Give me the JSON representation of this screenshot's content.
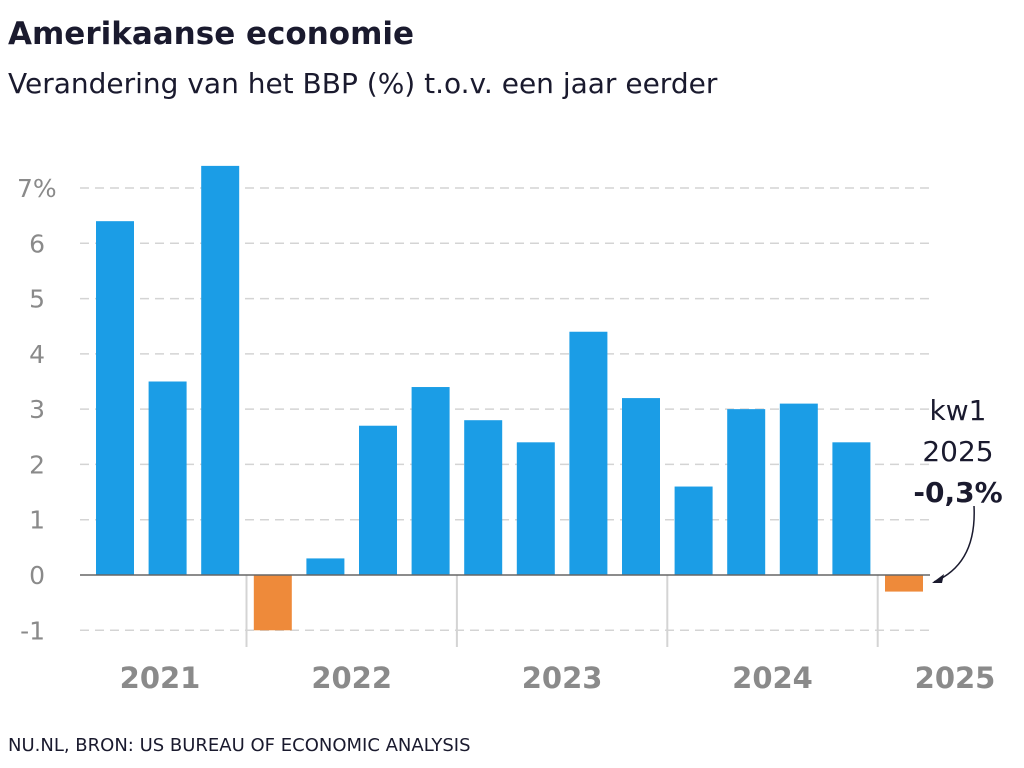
{
  "chart_data": {
    "type": "bar",
    "title": "Amerikaanse economie",
    "subtitle": "Verandering van het BBP (%) t.o.v. een jaar eerder",
    "source": "NU.NL, BRON: US BUREAU OF ECONOMIC ANALYSIS",
    "ylim": [
      -1,
      7
    ],
    "y_ticks": [
      {
        "value": -1,
        "label": "-1"
      },
      {
        "value": 0,
        "label": "0"
      },
      {
        "value": 1,
        "label": "1"
      },
      {
        "value": 2,
        "label": "2"
      },
      {
        "value": 3,
        "label": "3"
      },
      {
        "value": 4,
        "label": "4"
      },
      {
        "value": 5,
        "label": "5"
      },
      {
        "value": 6,
        "label": "6"
      },
      {
        "value": 7,
        "label": "7%"
      }
    ],
    "grid": true,
    "groups": [
      {
        "label": "2021",
        "values": [
          6.4,
          3.5,
          7.4
        ]
      },
      {
        "label": "2022",
        "values": [
          -1.0,
          0.3,
          2.7,
          3.4
        ]
      },
      {
        "label": "2023",
        "values": [
          2.8,
          2.4,
          4.4,
          3.2
        ]
      },
      {
        "label": "2024",
        "values": [
          1.6,
          3.0,
          3.1,
          2.4
        ]
      },
      {
        "label": "2025",
        "values": [
          -0.3
        ]
      }
    ],
    "colors": {
      "positive": "#1b9de6",
      "negative": "#ee8a3a",
      "grid": "#d4d4d4",
      "axis": "#666666"
    },
    "annotation": {
      "line1": "kw1",
      "line2": "2025",
      "value": "-0,3%"
    }
  }
}
